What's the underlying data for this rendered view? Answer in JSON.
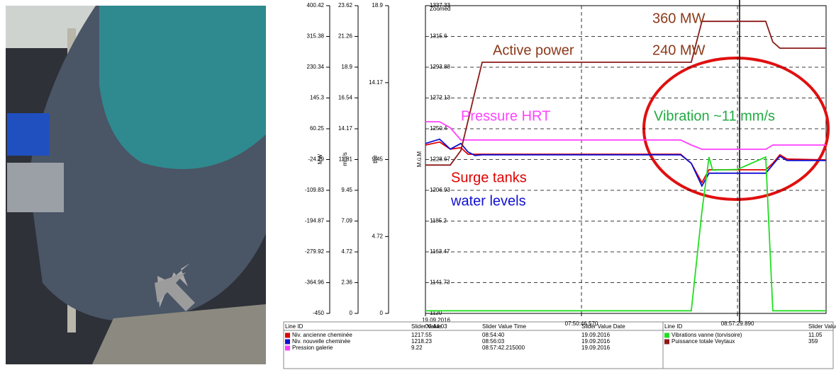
{
  "chart_data": {
    "type": "line",
    "zoom_label": "Zoomed",
    "x_date": "19.09.2016",
    "xlim": [
      "06:44:03",
      "09:35:23"
    ],
    "xticks": [
      "06:44:03",
      "07:50:46.570",
      "08:57:29.890"
    ],
    "grid": true,
    "axes": [
      {
        "label": "MW",
        "ylim": [
          -450,
          400.42
        ],
        "yticks": [
          -450,
          -364.96,
          -279.92,
          -194.87,
          -109.83,
          -24.79,
          60.25,
          145.3,
          230.34,
          315.38,
          400.42
        ]
      },
      {
        "label": "mm/s",
        "ylim": [
          0,
          23.62
        ],
        "yticks": [
          0,
          2.36,
          4.72,
          7.09,
          9.45,
          11.81,
          14.17,
          16.54,
          18.9,
          21.26,
          23.62
        ]
      },
      {
        "label": "bar",
        "ylim": [
          0,
          18.9
        ],
        "yticks": [
          0,
          4.72,
          9.45,
          14.17,
          18.9
        ]
      },
      {
        "label": "M.ü.M",
        "ylim": [
          1120,
          1337.33
        ],
        "yticks": [
          1120,
          1141.73,
          1163.47,
          1185.2,
          1206.93,
          1228.67,
          1250.4,
          1272.13,
          1293.88,
          1315.6,
          1337.33
        ]
      }
    ],
    "x": [
      "06:44:03",
      "06:50:07",
      "06:54:40",
      "06:59:13",
      "07:02:14",
      "07:05:16",
      "07:08:18",
      "07:14:22",
      "07:44:41",
      "08:33:11",
      "08:37:44",
      "08:42:17",
      "08:45:19",
      "08:46:50",
      "08:57:26",
      "09:09:34",
      "09:12:36",
      "09:15:38",
      "09:18:40",
      "09:35:23"
    ],
    "series": [
      {
        "name": "Niv. ancienne cheminée",
        "color": "#e00000",
        "axis": 3,
        "values": [
          1238.9,
          1241,
          1236,
          1237,
          1232.4,
          1232.4,
          1232.4,
          1232.4,
          1232.4,
          1232.4,
          1226,
          1212.4,
          1221.4,
          1221.4,
          1221.4,
          1221.4,
          1226,
          1232,
          1229,
          1228.4
        ],
        "slider_value": 1217.55,
        "slider_time": "08:54:40",
        "slider_date": "19.09.2016"
      },
      {
        "name": "Niv. nouvelle cheminée",
        "color": "#1010d0",
        "axis": 3,
        "values": [
          1240,
          1243,
          1236,
          1240,
          1234,
          1231.5,
          1232,
          1232,
          1232,
          1232,
          1226,
          1210,
          1219,
          1219,
          1219,
          1219,
          1225,
          1231,
          1228,
          1228
        ],
        "slider_value": 1218.23,
        "slider_time": "08:56:03",
        "slider_date": "19.09.2016"
      },
      {
        "name": "Pression galerie",
        "color": "#ff40ff",
        "axis": 2,
        "values": [
          11.77,
          11.77,
          11.4,
          10.65,
          10.65,
          10.65,
          10.65,
          10.65,
          10.65,
          10.65,
          10.34,
          10.08,
          10.08,
          10.08,
          10.08,
          10.08,
          10.34,
          10.34,
          10.34,
          10.34
        ],
        "slider_value": 9.22,
        "slider_time": "08:57:42.215000",
        "slider_date": "19.09.2016"
      },
      {
        "name": "Vibrations vanne (torvisoire)",
        "color": "#22dd22",
        "axis": 1,
        "values": [
          0.2,
          0.2,
          0.2,
          0.2,
          0.2,
          0.2,
          0.2,
          0.2,
          0.2,
          0.2,
          0.2,
          7.8,
          12,
          11,
          11.05,
          12,
          0.2,
          0.2,
          0.2,
          0.2
        ],
        "slider_value": 11.05
      },
      {
        "name": "Puissance totale Veytaux",
        "color": "#8b1a1a",
        "axis": 0,
        "values": [
          -40,
          -40,
          -40,
          0,
          82,
          164,
          244,
          244,
          244,
          244,
          244,
          357,
          357,
          357,
          357,
          357,
          300,
          283,
          283,
          283
        ],
        "slider_value": 359
      }
    ],
    "annotations": [
      "360 MW",
      "240 MW",
      "Active power",
      "Pressure HRT",
      "Vibration  ~11 mm/s",
      "Surge tanks",
      "water levels"
    ],
    "table_headers": [
      "Line ID",
      "Slider Value",
      "Slider Value Time",
      "Slider Value Date"
    ]
  }
}
